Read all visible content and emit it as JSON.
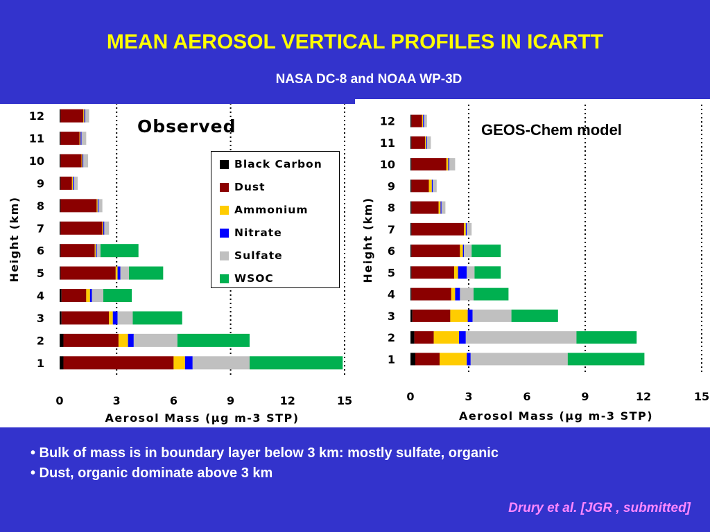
{
  "slide": {
    "title": "MEAN AEROSOL VERTICAL PROFILES IN ICARTT",
    "subtitle": "NASA DC-8 and NOAA WP-3D",
    "bullets": [
      "• Bulk of mass is in boundary layer below 3 km: mostly sulfate, organic",
      "• Dust, organic dominate above 3 km"
    ],
    "citation": "Drury et al. [JGR , submitted]"
  },
  "colors": {
    "background": "#3333cc",
    "title": "#ffff00",
    "citation": "#ff88ff"
  },
  "legend": [
    {
      "label": "Black Carbon",
      "color": "#000000"
    },
    {
      "label": "Dust",
      "color": "#8b0000"
    },
    {
      "label": "Ammonium",
      "color": "#ffcc00"
    },
    {
      "label": "Nitrate",
      "color": "#0000ff"
    },
    {
      "label": "Sulfate",
      "color": "#c0c0c0"
    },
    {
      "label": "WSOC",
      "color": "#00b050"
    }
  ],
  "chart_data": [
    {
      "type": "bar",
      "orientation": "horizontal",
      "stacked": true,
      "title": "Observed",
      "xlabel": "Aerosol Mass (µg m-3 STP)",
      "ylabel": "Height (km)",
      "xlim": [
        0,
        15
      ],
      "xticks": [
        0,
        3,
        6,
        9,
        12,
        15
      ],
      "categories": [
        "1",
        "2",
        "3",
        "4",
        "5",
        "6",
        "7",
        "8",
        "9",
        "10",
        "11",
        "12"
      ],
      "gridlines": "dotted vertical at 3, 9, 15",
      "series": [
        {
          "name": "Black Carbon",
          "values": [
            0.2,
            0.2,
            0.1,
            0.1,
            0.05,
            0.05,
            0.05,
            0.05,
            0.05,
            0.05,
            0.05,
            0.05
          ]
        },
        {
          "name": "Dust",
          "values": [
            5.8,
            2.9,
            2.5,
            1.3,
            2.9,
            1.8,
            2.2,
            1.9,
            0.6,
            1.1,
            1.0,
            1.2
          ]
        },
        {
          "name": "Ammonium",
          "values": [
            0.6,
            0.5,
            0.2,
            0.2,
            0.1,
            0.05,
            0.05,
            0.05,
            0.05,
            0.05,
            0.05,
            0.05
          ]
        },
        {
          "name": "Nitrate",
          "values": [
            0.4,
            0.3,
            0.25,
            0.1,
            0.15,
            0.05,
            0.05,
            0.05,
            0.05,
            0.05,
            0.05,
            0.05
          ]
        },
        {
          "name": "Sulfate",
          "values": [
            3.0,
            2.3,
            0.8,
            0.6,
            0.45,
            0.2,
            0.25,
            0.2,
            0.2,
            0.25,
            0.25,
            0.2
          ]
        },
        {
          "name": "WSOC",
          "values": [
            4.9,
            3.8,
            2.6,
            1.5,
            1.8,
            2.0,
            0,
            0,
            0,
            0,
            0,
            0
          ]
        }
      ]
    },
    {
      "type": "bar",
      "orientation": "horizontal",
      "stacked": true,
      "title": "GEOS-Chem model",
      "xlabel": "Aerosol Mass (µg m-3 STP)",
      "ylabel": "Height (km)",
      "xlim": [
        0,
        15
      ],
      "xticks": [
        0,
        3,
        6,
        9,
        12,
        15
      ],
      "categories": [
        "1",
        "2",
        "3",
        "4",
        "5",
        "6",
        "7",
        "8",
        "9",
        "10",
        "11",
        "12"
      ],
      "gridlines": "dotted vertical at 3, 9, 15",
      "series": [
        {
          "name": "Black Carbon",
          "values": [
            0.25,
            0.2,
            0.1,
            0.05,
            0.05,
            0.05,
            0.05,
            0.05,
            0.05,
            0.05,
            0.05,
            0.05
          ]
        },
        {
          "name": "Dust",
          "values": [
            1.25,
            1.0,
            1.95,
            2.05,
            2.2,
            2.5,
            2.7,
            1.4,
            0.9,
            1.8,
            0.7,
            0.55
          ]
        },
        {
          "name": "Ammonium",
          "values": [
            1.4,
            1.3,
            0.9,
            0.2,
            0.2,
            0.15,
            0.1,
            0.1,
            0.15,
            0.1,
            0.05,
            0.05
          ]
        },
        {
          "name": "Nitrate",
          "values": [
            0.2,
            0.35,
            0.25,
            0.25,
            0.45,
            0.05,
            0.05,
            0.05,
            0.05,
            0.05,
            0.05,
            0.05
          ]
        },
        {
          "name": "Sulfate",
          "values": [
            5.0,
            5.7,
            2.0,
            0.7,
            0.4,
            0.4,
            0.25,
            0.2,
            0.2,
            0.3,
            0.2,
            0.15
          ]
        },
        {
          "name": "WSOC",
          "values": [
            3.95,
            3.1,
            2.4,
            1.8,
            1.35,
            1.5,
            0,
            0,
            0,
            0,
            0,
            0
          ]
        }
      ]
    }
  ]
}
